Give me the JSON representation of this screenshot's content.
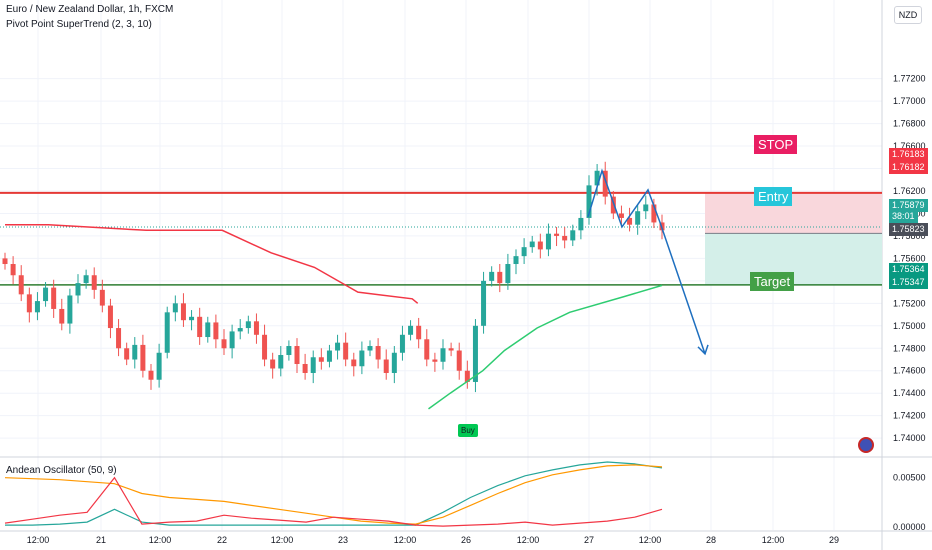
{
  "header": {
    "symbol_line": "Euro / New Zealand Dollar, 1h, FXCM",
    "indicator_line": "Pivot Point SuperTrend (2, 3, 10)",
    "oscillator_line": "Andean Oscillator (50, 9)"
  },
  "currency": "NZD",
  "annotations": {
    "stop_label": "STOP",
    "entry_label": "Entry",
    "target_label": "Target",
    "buy_label": "Buy"
  },
  "price_tags": {
    "stop_a": "1.76183",
    "stop_b": "1.76182",
    "current": "1.75879",
    "countdown": "38:01",
    "entry": "1.75823",
    "target_a": "1.75364",
    "target_b": "1.75347"
  },
  "colors": {
    "up": "#26a69a",
    "down": "#ef5350",
    "stop_zone": "#f9d7dc",
    "target_zone": "#d4efe9",
    "stop_box": "#e91e63",
    "entry_box": "#26c6da",
    "target_box": "#43a047",
    "supertrend_down": "#f23645",
    "supertrend_up": "#2ecc71",
    "projection": "#1e6fbf",
    "osc_teal": "#26a69a",
    "osc_orange": "#ff9800",
    "osc_red": "#f23645"
  },
  "chart_data": [
    {
      "type": "candlestick",
      "title": "Euro / New Zealand Dollar, 1h, FXCM",
      "ylim": [
        1.7385,
        1.779
      ],
      "y_ticks": [
        "1.77200",
        "1.77000",
        "1.76800",
        "1.76600",
        "1.76400",
        "1.76200",
        "1.76000",
        "1.75800",
        "1.75600",
        "1.75400",
        "1.75200",
        "1.75000",
        "1.74800",
        "1.74600",
        "1.74400",
        "1.74200",
        "1.74000"
      ],
      "x_tick_labels": [
        "12:00",
        "21",
        "12:00",
        "22",
        "12:00",
        "23",
        "12:00",
        "26",
        "12:00",
        "27",
        "12:00",
        "28",
        "12:00",
        "29"
      ],
      "horizontal_levels": {
        "stop": 1.76183,
        "entry": 1.75823,
        "target": 1.75364
      },
      "close_path": [
        1.7555,
        1.7545,
        1.7528,
        1.7512,
        1.7522,
        1.7534,
        1.7515,
        1.7502,
        1.7527,
        1.7538,
        1.7545,
        1.7532,
        1.7518,
        1.7498,
        1.748,
        1.747,
        1.7483,
        1.746,
        1.7452,
        1.7476,
        1.7512,
        1.752,
        1.7505,
        1.7508,
        1.749,
        1.7503,
        1.7488,
        1.748,
        1.7495,
        1.7498,
        1.7504,
        1.7492,
        1.747,
        1.7462,
        1.7474,
        1.7482,
        1.7466,
        1.7458,
        1.7472,
        1.7468,
        1.7478,
        1.7485,
        1.747,
        1.7464,
        1.7478,
        1.7482,
        1.747,
        1.7458,
        1.7476,
        1.7492,
        1.75,
        1.7488,
        1.747,
        1.7468,
        1.748,
        1.7478,
        1.746,
        1.745,
        1.75,
        1.754,
        1.7548,
        1.7538,
        1.7555,
        1.7562,
        1.757,
        1.7575,
        1.7568,
        1.7582,
        1.758,
        1.7576,
        1.7585,
        1.7596,
        1.7625,
        1.7638,
        1.7615,
        1.76,
        1.7596,
        1.759,
        1.7602,
        1.7608,
        1.7592,
        1.7585
      ],
      "supertrend_down": [
        [
          0,
          1.759
        ],
        [
          8,
          1.759
        ],
        [
          26,
          1.7585
        ],
        [
          40,
          1.7585
        ],
        [
          49,
          1.7565
        ],
        [
          57,
          1.7552
        ],
        [
          65,
          1.753
        ],
        [
          75,
          1.7524
        ],
        [
          76,
          1.752
        ]
      ],
      "supertrend_up": [
        [
          78,
          1.7426
        ],
        [
          82,
          1.744
        ],
        [
          88,
          1.746
        ],
        [
          92,
          1.7478
        ],
        [
          98,
          1.7498
        ],
        [
          104,
          1.7512
        ],
        [
          114,
          1.7526
        ],
        [
          121,
          1.7536
        ]
      ]
    },
    {
      "type": "line",
      "title": "Andean Oscillator (50, 9)",
      "ylim": [
        -0.0003,
        0.0068
      ],
      "y_ticks": [
        "0.00500",
        "0.00000"
      ],
      "series": [
        {
          "color_key": "osc_teal",
          "values": [
            0.0002,
            0.0002,
            0.0003,
            0.0005,
            0.0018,
            0.0005,
            0.0002,
            0.0002,
            0.0002,
            0.0002,
            0.0002,
            0.0002,
            0.0002,
            0.0002,
            0.0002,
            0.0002,
            0.0015,
            0.003,
            0.0042,
            0.0052,
            0.0058,
            0.0063,
            0.0066,
            0.0064,
            0.006
          ]
        },
        {
          "color_key": "osc_orange",
          "values": [
            0.005,
            0.0049,
            0.0048,
            0.0046,
            0.0044,
            0.0034,
            0.003,
            0.0028,
            0.0026,
            0.0022,
            0.0018,
            0.0014,
            0.001,
            0.0006,
            0.0004,
            0.0003,
            0.001,
            0.0022,
            0.0034,
            0.0045,
            0.0053,
            0.0058,
            0.0062,
            0.0063,
            0.0061
          ]
        },
        {
          "color_key": "osc_red",
          "values": [
            0.0004,
            0.0008,
            0.0012,
            0.0015,
            0.005,
            0.0003,
            0.0005,
            0.0006,
            0.0012,
            0.0009,
            0.0007,
            0.0005,
            0.001,
            0.0008,
            0.0006,
            0.0002,
            0.0001,
            0.0002,
            0.0003,
            0.0005,
            0.0002,
            0.0004,
            0.0006,
            0.001,
            0.0018
          ]
        }
      ]
    }
  ]
}
